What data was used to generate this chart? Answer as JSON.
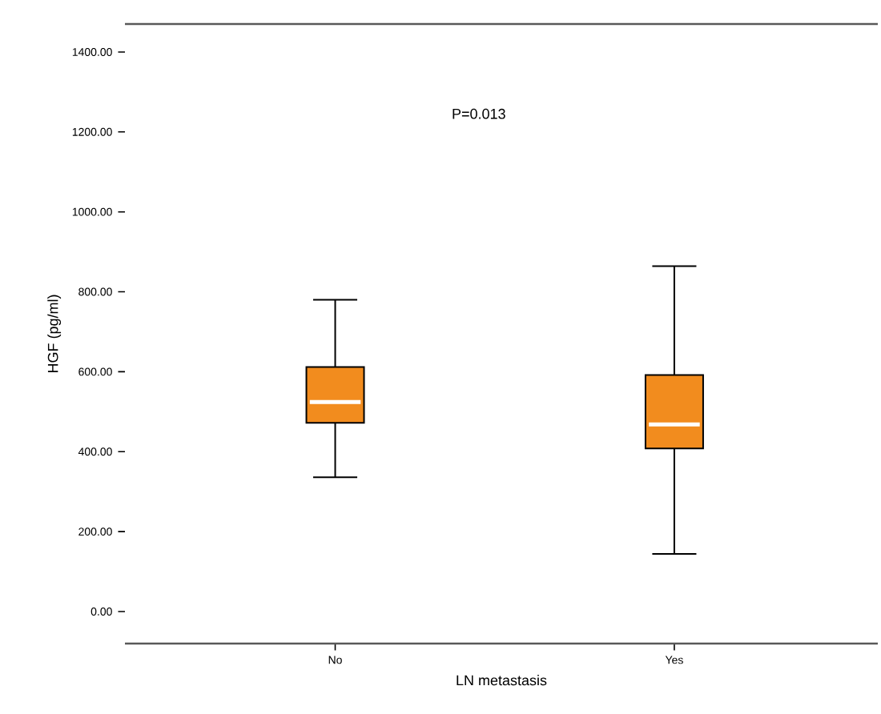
{
  "chart_data": {
    "type": "box",
    "xlabel": "LN metastasis",
    "ylabel": "HGF (pg/ml)",
    "categories": [
      "No",
      "Yes"
    ],
    "boxes": [
      {
        "low": 336,
        "q1": 472,
        "median": 524,
        "q3": 612,
        "high": 780
      },
      {
        "low": 144,
        "q1": 408,
        "median": 468,
        "q3": 592,
        "high": 864
      }
    ],
    "color": "#f28c1e",
    "ylim": [
      -80,
      1470
    ],
    "yticks": [
      {
        "value": 0,
        "label": "0.00"
      },
      {
        "value": 200,
        "label": "200.00"
      },
      {
        "value": 400,
        "label": "400.00"
      },
      {
        "value": 600,
        "label": "600.00"
      },
      {
        "value": 800,
        "label": "800.00"
      },
      {
        "value": 1000,
        "label": "1000.00"
      },
      {
        "value": 1200,
        "label": "1200.00"
      },
      {
        "value": 1400,
        "label": "1400.00"
      }
    ],
    "annotations": [
      "P=0.013"
    ],
    "grid": false
  }
}
